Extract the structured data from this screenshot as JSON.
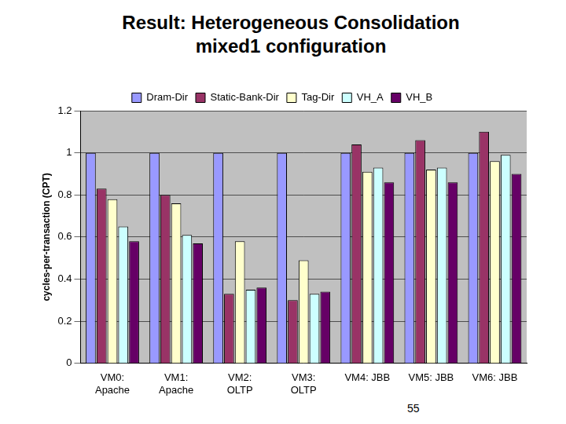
{
  "chart_data": {
    "type": "bar",
    "title": [
      "Result:  Heterogeneous Consolidation",
      "mixed1 configuration"
    ],
    "page_number": "55",
    "y_label": "cycles-per-transaction (CPT)",
    "categories": [
      [
        "VM0:",
        "Apache"
      ],
      [
        "VM1:",
        "Apache"
      ],
      [
        "VM2:",
        "OLTP"
      ],
      [
        "VM3:",
        "OLTP"
      ],
      "VM4: JBB",
      "VM5: JBB",
      "VM6: JBB"
    ],
    "series": [
      {
        "name": "Dram-Dir",
        "color": "#9999ff",
        "values": [
          1,
          1,
          1,
          1,
          1,
          1,
          1
        ]
      },
      {
        "name": "Static-Bank-Dir",
        "color": "#993366",
        "values": [
          0.83,
          0.8,
          0.33,
          0.3,
          1.04,
          1.06,
          1.1
        ]
      },
      {
        "name": "Tag-Dir",
        "color": "#ffffcc",
        "values": [
          0.78,
          0.76,
          0.58,
          0.49,
          0.91,
          0.92,
          0.96
        ]
      },
      {
        "name": "VH_A",
        "color": "#ccffff",
        "values": [
          0.65,
          0.61,
          0.35,
          0.33,
          0.93,
          0.93,
          0.99
        ]
      },
      {
        "name": "VH_B",
        "color": "#660066",
        "values": [
          0.58,
          0.57,
          0.36,
          0.34,
          0.86,
          0.86,
          0.9
        ]
      }
    ],
    "ylim": [
      0,
      1.2
    ],
    "yticks": [
      0,
      0.2,
      0.4,
      0.6,
      0.8,
      1,
      1.2
    ],
    "grid": true,
    "legend": "top"
  }
}
